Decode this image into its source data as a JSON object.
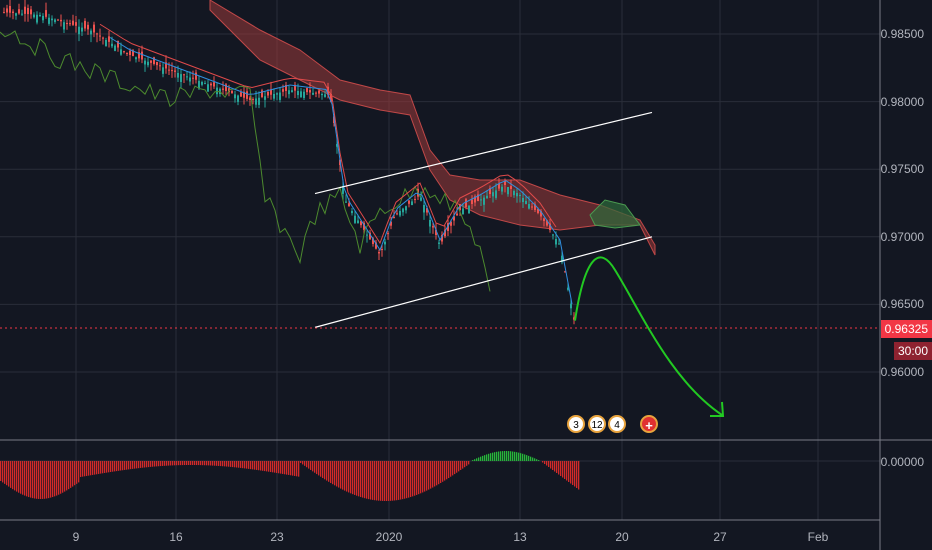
{
  "chart_data": {
    "type": "candlestick",
    "instrument_note": "",
    "y_ticks": [
      "0.98500",
      "0.98000",
      "0.97500",
      "0.97000",
      "0.96500",
      "0.96000"
    ],
    "y_tick_values": [
      0.985,
      0.98,
      0.975,
      0.97,
      0.965,
      0.96
    ],
    "x_ticks": [
      "9",
      "16",
      "23",
      "2020",
      "13",
      "20",
      "27",
      "Feb"
    ],
    "ylim": [
      0.9558,
      0.9884
    ],
    "current_price": "0.96325",
    "countdown": "30:00",
    "oscillator_zero_label": "0.00000",
    "channel_upper": [
      [
        "Dec 26",
        0.9732
      ],
      [
        "Jan 23",
        0.9792
      ]
    ],
    "channel_lower": [
      [
        "Dec 26",
        0.9633
      ],
      [
        "Jan 23",
        0.97
      ]
    ],
    "projection": "bounce to ~0.9682 then decline to ~0.9570",
    "events": [
      {
        "label": "3",
        "kind": "us"
      },
      {
        "label": "12",
        "kind": "us"
      },
      {
        "label": "4",
        "kind": "us"
      },
      {
        "label": "+",
        "kind": "ch"
      }
    ],
    "colors": {
      "background": "#131722",
      "up_candle": "#26a69a",
      "down_candle": "#ef5350",
      "cloud_bear": "#9c3b3b",
      "cloud_bull": "#2e6b3a",
      "kijun": "#e04a4a",
      "tenkan": "#2f8fe0",
      "chikou": "#4c8a2e",
      "projection": "#22c922",
      "histogram_neg": "#d12a2a",
      "histogram_pos": "#27b63a"
    }
  }
}
